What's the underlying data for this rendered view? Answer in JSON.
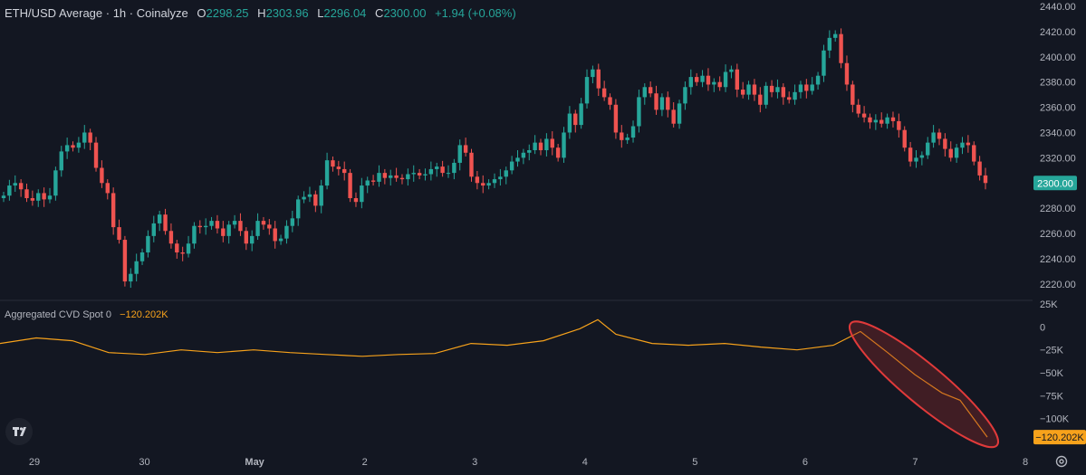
{
  "header": {
    "title": "ETH/USD Average · 1h · Coinalyze",
    "open_label": "O",
    "open": "2298.25",
    "high_label": "H",
    "high": "2303.96",
    "low_label": "L",
    "low": "2296.04",
    "close_label": "C",
    "close": "2300.00",
    "change": "+1.94 (+0.08%)"
  },
  "indicator": {
    "label": "Aggregated CVD Spot 0",
    "value": "−120.202K"
  },
  "colors": {
    "background": "#131722",
    "up": "#26a69a",
    "down": "#ef5350",
    "cvd_line": "#f7a21b",
    "price_tag": "#26a69a",
    "cvd_tag": "#f7a21b",
    "highlight": "#e03a3a"
  },
  "chart_data": [
    {
      "type": "candlestick",
      "title": "ETH/USD Average · 1h · Coinalyze",
      "x_ticks": [
        "29",
        "30",
        "May",
        "2",
        "3",
        "4",
        "5",
        "6",
        "7",
        "8"
      ],
      "y_ticks": [
        "2440.00",
        "2420.00",
        "2400.00",
        "2380.00",
        "2360.00",
        "2340.00",
        "2320.00",
        "2300.00",
        "2280.00",
        "2260.00",
        "2240.00",
        "2220.00"
      ],
      "ylim": [
        2207,
        2445
      ],
      "last_price_label": "2300.00",
      "grid": false,
      "closes": [
        2290,
        2298,
        2300,
        2295,
        2288,
        2286,
        2292,
        2287,
        2290,
        2310,
        2325,
        2330,
        2328,
        2332,
        2340,
        2332,
        2312,
        2300,
        2292,
        2265,
        2255,
        2222,
        2228,
        2238,
        2245,
        2258,
        2268,
        2275,
        2262,
        2252,
        2245,
        2244,
        2252,
        2266,
        2265,
        2266,
        2270,
        2264,
        2258,
        2267,
        2270,
        2262,
        2252,
        2258,
        2270,
        2267,
        2264,
        2254,
        2256,
        2266,
        2272,
        2287,
        2289,
        2291,
        2282,
        2298,
        2318,
        2313,
        2311,
        2308,
        2288,
        2285,
        2298,
        2302,
        2301,
        2308,
        2304,
        2306,
        2304,
        2303,
        2307,
        2308,
        2306,
        2307,
        2311,
        2313,
        2308,
        2308,
        2316,
        2330,
        2324,
        2305,
        2300,
        2298,
        2300,
        2303,
        2305,
        2310,
        2317,
        2320,
        2324,
        2326,
        2332,
        2326,
        2335,
        2328,
        2320,
        2340,
        2355,
        2346,
        2363,
        2384,
        2390,
        2375,
        2368,
        2362,
        2340,
        2334,
        2336,
        2345,
        2368,
        2376,
        2371,
        2358,
        2368,
        2358,
        2347,
        2363,
        2376,
        2384,
        2380,
        2385,
        2378,
        2380,
        2376,
        2388,
        2390,
        2374,
        2370,
        2378,
        2370,
        2362,
        2377,
        2372,
        2376,
        2368,
        2366,
        2372,
        2378,
        2373,
        2378,
        2385,
        2405,
        2415,
        2418,
        2395,
        2378,
        2362,
        2355,
        2352,
        2348,
        2350,
        2347,
        2352,
        2349,
        2342,
        2328,
        2317,
        2320,
        2322,
        2332,
        2340,
        2335,
        2327,
        2320,
        2328,
        2332,
        2330,
        2317,
        2306,
        2300
      ]
    },
    {
      "type": "line",
      "name": "Aggregated CVD Spot 0",
      "y_ticks": [
        "25K",
        "0",
        "−25K",
        "−50K",
        "−75K",
        "−100K"
      ],
      "ylim": [
        -125000,
        27000
      ],
      "last_value_label": "−120.202K",
      "x": [
        0,
        40,
        80,
        120,
        160,
        200,
        240,
        280,
        320,
        360,
        400,
        440,
        480,
        520,
        560,
        600,
        640,
        660,
        680,
        720,
        760,
        800,
        840,
        880,
        920,
        950,
        980,
        1010,
        1040,
        1060,
        1090
      ],
      "values": [
        -18000,
        -12000,
        -15000,
        -28000,
        -30000,
        -25000,
        -28000,
        -25000,
        -28000,
        -30000,
        -32000,
        -30000,
        -29000,
        -18000,
        -20000,
        -15000,
        -2000,
        8000,
        -8000,
        -18000,
        -20000,
        -18000,
        -22000,
        -25000,
        -20000,
        -5000,
        -28000,
        -52000,
        -72000,
        -80000,
        -120202
      ]
    }
  ]
}
